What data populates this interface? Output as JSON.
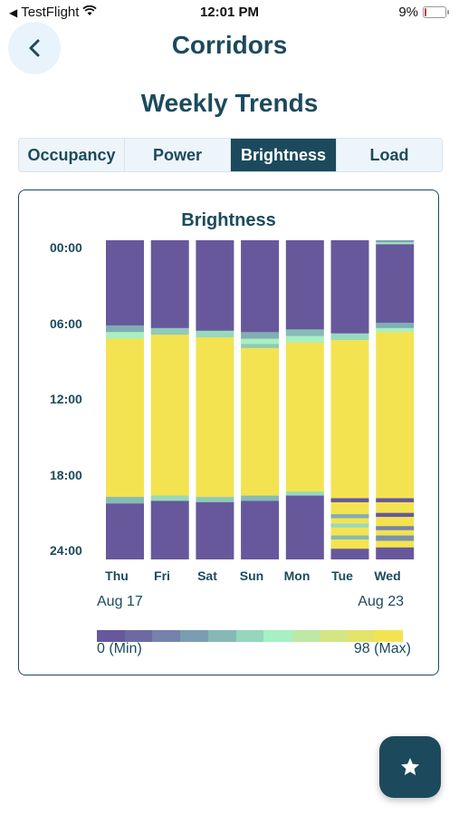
{
  "status_bar": {
    "carrier": "TestFlight",
    "time": "12:01 PM",
    "battery_percent": "9%",
    "battery_level": 0.09
  },
  "header": {
    "title": "Corridors"
  },
  "section": {
    "title": "Weekly Trends"
  },
  "tabs": [
    {
      "label": "Occupancy",
      "active": false
    },
    {
      "label": "Power",
      "active": false
    },
    {
      "label": "Brightness",
      "active": true
    },
    {
      "label": "Load",
      "active": false
    }
  ],
  "colors": {
    "primary": "#1c4a5c",
    "min": "#67589c",
    "max": "#f3e351",
    "tab_bg": "#eef5fa",
    "back_bg": "#e9f3fb"
  },
  "chart_data": {
    "type": "heatmap",
    "title": "Brightness",
    "x": [
      "Thu",
      "Fri",
      "Sat",
      "Sun",
      "Mon",
      "Tue",
      "Wed"
    ],
    "y_ticks": [
      "00:00",
      "06:00",
      "12:00",
      "18:00",
      "24:00"
    ],
    "y_range_hours": [
      0,
      24
    ],
    "date_start": "Aug 17",
    "date_end": "Aug 23",
    "scale": {
      "min_label": "0 (Min)",
      "max_label": "98 (Max)",
      "min": 0,
      "max": 98
    },
    "scale_colors": [
      "#67589c",
      "#6d6aa3",
      "#7482ac",
      "#7b9db2",
      "#86b9b5",
      "#95d6bc",
      "#a6f0c4",
      "#bde9a4",
      "#d4e585",
      "#e5e26c",
      "#f3e351"
    ],
    "series": [
      {
        "day": "Thu",
        "segments": [
          {
            "start": 0,
            "end": 6.4,
            "value": 0
          },
          {
            "start": 6.4,
            "end": 6.9,
            "value": 35
          },
          {
            "start": 6.9,
            "end": 7.4,
            "value": 60
          },
          {
            "start": 7.4,
            "end": 19.3,
            "value": 98
          },
          {
            "start": 19.3,
            "end": 19.8,
            "value": 40
          },
          {
            "start": 19.8,
            "end": 24,
            "value": 0
          }
        ]
      },
      {
        "day": "Fri",
        "segments": [
          {
            "start": 0,
            "end": 6.6,
            "value": 0
          },
          {
            "start": 6.6,
            "end": 7.1,
            "value": 45
          },
          {
            "start": 7.1,
            "end": 19.2,
            "value": 98
          },
          {
            "start": 19.2,
            "end": 19.6,
            "value": 50
          },
          {
            "start": 19.6,
            "end": 24,
            "value": 0
          }
        ]
      },
      {
        "day": "Sat",
        "segments": [
          {
            "start": 0,
            "end": 6.8,
            "value": 0
          },
          {
            "start": 6.8,
            "end": 7.3,
            "value": 50
          },
          {
            "start": 7.3,
            "end": 19.3,
            "value": 98
          },
          {
            "start": 19.3,
            "end": 19.7,
            "value": 45
          },
          {
            "start": 19.7,
            "end": 24,
            "value": 0
          }
        ]
      },
      {
        "day": "Sun",
        "segments": [
          {
            "start": 0,
            "end": 6.9,
            "value": 0
          },
          {
            "start": 6.9,
            "end": 7.4,
            "value": 35
          },
          {
            "start": 7.4,
            "end": 7.8,
            "value": 60
          },
          {
            "start": 7.8,
            "end": 8.1,
            "value": 45
          },
          {
            "start": 8.1,
            "end": 19.2,
            "value": 98
          },
          {
            "start": 19.2,
            "end": 19.6,
            "value": 40
          },
          {
            "start": 19.6,
            "end": 24,
            "value": 0
          }
        ]
      },
      {
        "day": "Mon",
        "segments": [
          {
            "start": 0,
            "end": 6.7,
            "value": 0
          },
          {
            "start": 6.7,
            "end": 7.2,
            "value": 40
          },
          {
            "start": 7.2,
            "end": 7.7,
            "value": 60
          },
          {
            "start": 7.7,
            "end": 18.9,
            "value": 98
          },
          {
            "start": 18.9,
            "end": 19.2,
            "value": 50
          },
          {
            "start": 19.2,
            "end": 24,
            "value": 0
          }
        ]
      },
      {
        "day": "Tue",
        "segments": [
          {
            "start": 0,
            "end": 7.0,
            "value": 0
          },
          {
            "start": 7.0,
            "end": 7.5,
            "value": 50
          },
          {
            "start": 7.5,
            "end": 19.4,
            "value": 98
          },
          {
            "start": 19.4,
            "end": 19.7,
            "value": 0
          },
          {
            "start": 19.7,
            "end": 20.6,
            "value": 98
          },
          {
            "start": 20.6,
            "end": 20.9,
            "value": 35
          },
          {
            "start": 20.9,
            "end": 21.3,
            "value": 98
          },
          {
            "start": 21.3,
            "end": 21.6,
            "value": 50
          },
          {
            "start": 21.6,
            "end": 22.2,
            "value": 98
          },
          {
            "start": 22.2,
            "end": 22.5,
            "value": 40
          },
          {
            "start": 22.5,
            "end": 23.2,
            "value": 98
          },
          {
            "start": 23.2,
            "end": 24,
            "value": 0
          }
        ]
      },
      {
        "day": "Wed",
        "segments": [
          {
            "start": 0,
            "end": 0.15,
            "value": 30
          },
          {
            "start": 0.15,
            "end": 0.3,
            "value": 55
          },
          {
            "start": 0.3,
            "end": 6.2,
            "value": 0
          },
          {
            "start": 6.2,
            "end": 6.6,
            "value": 35
          },
          {
            "start": 6.6,
            "end": 6.9,
            "value": 60
          },
          {
            "start": 6.9,
            "end": 19.4,
            "value": 98
          },
          {
            "start": 19.4,
            "end": 19.7,
            "value": 0
          },
          {
            "start": 19.7,
            "end": 20.5,
            "value": 98
          },
          {
            "start": 20.5,
            "end": 20.8,
            "value": 0
          },
          {
            "start": 20.8,
            "end": 21.5,
            "value": 98
          },
          {
            "start": 21.5,
            "end": 21.8,
            "value": 20
          },
          {
            "start": 21.8,
            "end": 22.2,
            "value": 98
          },
          {
            "start": 22.2,
            "end": 22.6,
            "value": 25
          },
          {
            "start": 22.6,
            "end": 23.1,
            "value": 98
          },
          {
            "start": 23.1,
            "end": 24,
            "value": 0
          }
        ]
      }
    ]
  }
}
